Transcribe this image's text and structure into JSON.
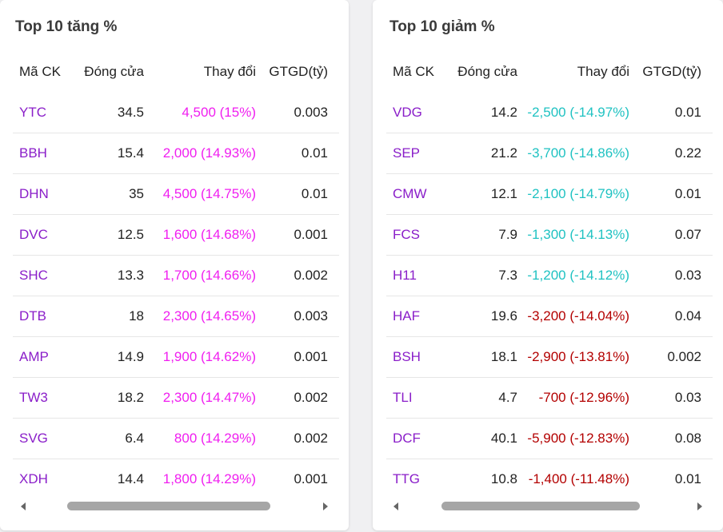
{
  "colors": {
    "gain": "#f01ef0",
    "floor": "#1fc2c2",
    "loss": "#b30000",
    "ticker": "#8a1ec9"
  },
  "gainers": {
    "title": "Top 10 tăng %",
    "headers": [
      "Mã CK",
      "Đóng cửa",
      "Thay đổi",
      "GTGD(tỷ)"
    ],
    "rows": [
      {
        "code": "YTC",
        "close": "34.5",
        "change": "4,500 (15%)",
        "value": "0.003",
        "tone": "ceil"
      },
      {
        "code": "BBH",
        "close": "15.4",
        "change": "2,000 (14.93%)",
        "value": "0.01",
        "tone": "ceil"
      },
      {
        "code": "DHN",
        "close": "35",
        "change": "4,500 (14.75%)",
        "value": "0.01",
        "tone": "ceil"
      },
      {
        "code": "DVC",
        "close": "12.5",
        "change": "1,600 (14.68%)",
        "value": "0.001",
        "tone": "ceil"
      },
      {
        "code": "SHC",
        "close": "13.3",
        "change": "1,700 (14.66%)",
        "value": "0.002",
        "tone": "ceil"
      },
      {
        "code": "DTB",
        "close": "18",
        "change": "2,300 (14.65%)",
        "value": "0.003",
        "tone": "ceil"
      },
      {
        "code": "AMP",
        "close": "14.9",
        "change": "1,900 (14.62%)",
        "value": "0.001",
        "tone": "ceil"
      },
      {
        "code": "TW3",
        "close": "18.2",
        "change": "2,300 (14.47%)",
        "value": "0.002",
        "tone": "ceil"
      },
      {
        "code": "SVG",
        "close": "6.4",
        "change": "800 (14.29%)",
        "value": "0.002",
        "tone": "ceil"
      },
      {
        "code": "XDH",
        "close": "14.4",
        "change": "1,800 (14.29%)",
        "value": "0.001",
        "tone": "ceil"
      }
    ],
    "scroll_position": 0.15
  },
  "losers": {
    "title": "Top 10 giảm %",
    "headers": [
      "Mã CK",
      "Đóng cửa",
      "Thay đổi",
      "GTGD(tỷ)"
    ],
    "rows": [
      {
        "code": "VDG",
        "close": "14.2",
        "change": "-2,500 (-14.97%)",
        "value": "0.01",
        "tone": "floor"
      },
      {
        "code": "SEP",
        "close": "21.2",
        "change": "-3,700 (-14.86%)",
        "value": "0.22",
        "tone": "floor"
      },
      {
        "code": "CMW",
        "close": "12.1",
        "change": "-2,100 (-14.79%)",
        "value": "0.01",
        "tone": "floor"
      },
      {
        "code": "FCS",
        "close": "7.9",
        "change": "-1,300 (-14.13%)",
        "value": "0.07",
        "tone": "floor"
      },
      {
        "code": "H11",
        "close": "7.3",
        "change": "-1,200 (-14.12%)",
        "value": "0.03",
        "tone": "floor"
      },
      {
        "code": "HAF",
        "close": "19.6",
        "change": "-3,200 (-14.04%)",
        "value": "0.04",
        "tone": "down"
      },
      {
        "code": "BSH",
        "close": "18.1",
        "change": "-2,900 (-13.81%)",
        "value": "0.002",
        "tone": "down"
      },
      {
        "code": "TLI",
        "close": "4.7",
        "change": "-700 (-12.96%)",
        "value": "0.03",
        "tone": "down"
      },
      {
        "code": "DCF",
        "close": "40.1",
        "change": "-5,900 (-12.83%)",
        "value": "0.08",
        "tone": "down"
      },
      {
        "code": "TTG",
        "close": "10.8",
        "change": "-1,400 (-11.48%)",
        "value": "0.01",
        "tone": "down"
      }
    ],
    "scroll_position": 0.15
  }
}
